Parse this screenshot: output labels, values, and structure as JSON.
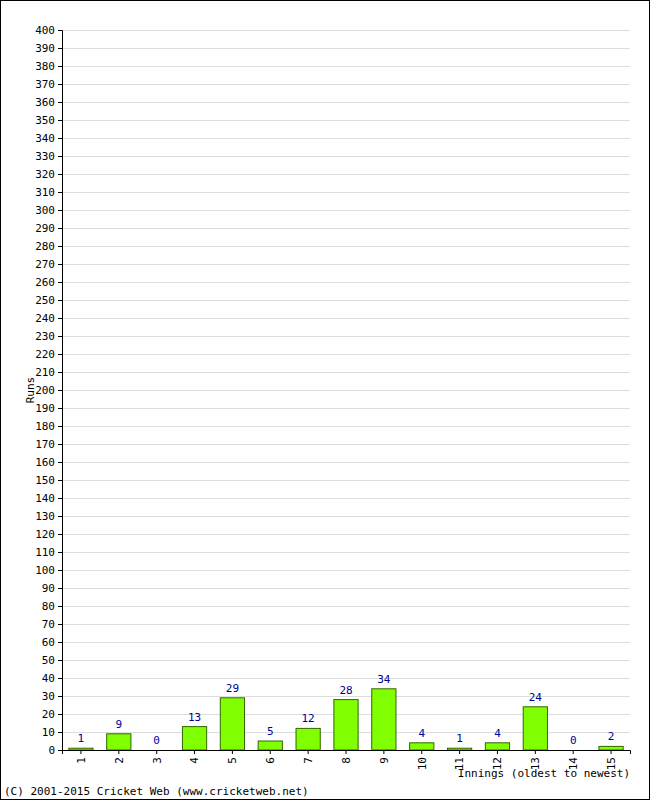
{
  "chart_data": {
    "type": "bar",
    "x_label": "Innings (oldest to newest)",
    "y_label": "Runs",
    "annotations": [
      "(C) 2001-2015 Cricket Web (www.cricketweb.net)"
    ],
    "categories": [
      "1",
      "2",
      "3",
      "4",
      "5",
      "6",
      "7",
      "8",
      "9",
      "10",
      "11",
      "12",
      "13",
      "14",
      "15"
    ],
    "values": [
      1,
      9,
      0,
      13,
      29,
      5,
      12,
      28,
      34,
      4,
      1,
      4,
      24,
      0,
      2
    ],
    "color": "#80ff00",
    "ylim": [
      0,
      400
    ],
    "yticks": [
      0,
      10,
      20,
      30,
      40,
      50,
      60,
      70,
      80,
      90,
      100,
      110,
      120,
      130,
      140,
      150,
      160,
      170,
      180,
      190,
      200,
      210,
      220,
      230,
      240,
      250,
      260,
      270,
      280,
      290,
      300,
      310,
      320,
      330,
      340,
      350,
      360,
      370,
      380,
      390,
      400
    ],
    "grid": true,
    "data_labels": true
  }
}
